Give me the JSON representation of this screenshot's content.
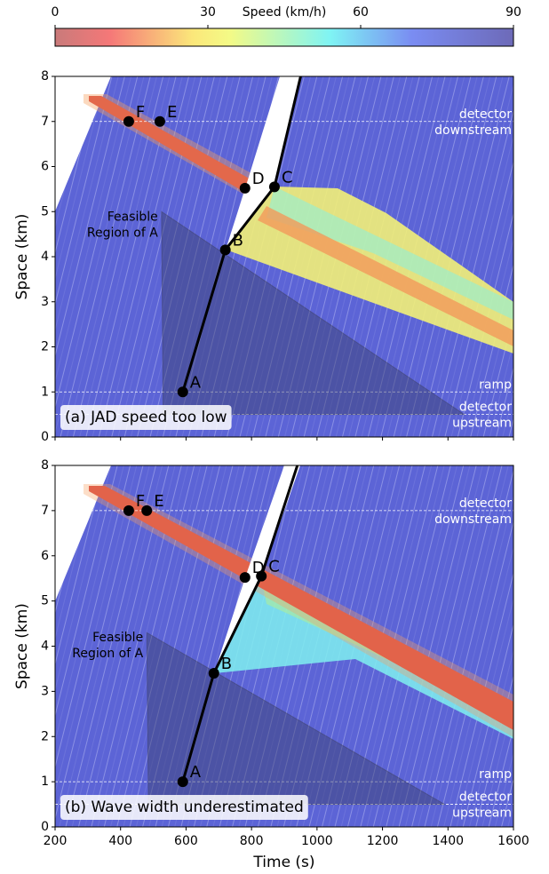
{
  "chart_data": [
    {
      "type": "heatmap",
      "colorbar": {
        "label": "Speed (km/h)",
        "lim": [
          0,
          90
        ],
        "ticks": [
          0,
          30,
          60,
          90
        ]
      },
      "panel_label": "(a) JAD speed too low",
      "ylabel": "Space (km)",
      "xlim": [
        200,
        1600
      ],
      "ylim": [
        0,
        8
      ],
      "xticks": [
        200,
        400,
        600,
        800,
        1000,
        1200,
        1400,
        1600
      ],
      "yticks": [
        0,
        1,
        2,
        3,
        4,
        5,
        6,
        7,
        8
      ],
      "reference_lines": [
        {
          "y": 7,
          "label": [
            "detector",
            "downstream"
          ]
        },
        {
          "y": 1,
          "label": [
            "ramp"
          ]
        },
        {
          "y": 0.5,
          "label": [
            "detector",
            "upstream"
          ]
        }
      ],
      "feasible_region": {
        "label": [
          "Feasible",
          "Region of A"
        ],
        "x": [
          525,
          530,
          1450
        ],
        "y": [
          5,
          0.5,
          0.5
        ]
      },
      "path": {
        "x": [
          590,
          720,
          870,
          950
        ],
        "y": [
          1,
          4.15,
          5.55,
          8
        ]
      },
      "points": {
        "labels": [
          "A",
          "B",
          "C",
          "D",
          "E",
          "F"
        ],
        "x": [
          590,
          720,
          870,
          780,
          520,
          425
        ],
        "y": [
          1,
          4.15,
          5.55,
          5.52,
          7,
          7
        ]
      }
    },
    {
      "type": "heatmap",
      "panel_label": "(b) Wave width underestimated",
      "ylabel": "Space (km)",
      "xlabel": "Time (s)",
      "xlim": [
        200,
        1600
      ],
      "ylim": [
        0,
        8
      ],
      "xticks": [
        200,
        400,
        600,
        800,
        1000,
        1200,
        1400,
        1600
      ],
      "yticks": [
        0,
        1,
        2,
        3,
        4,
        5,
        6,
        7,
        8
      ],
      "reference_lines": [
        {
          "y": 7,
          "label": [
            "detector",
            "downstream"
          ]
        },
        {
          "y": 1,
          "label": [
            "ramp"
          ]
        },
        {
          "y": 0.5,
          "label": [
            "detector",
            "upstream"
          ]
        }
      ],
      "feasible_region": {
        "label": [
          "Feasible",
          "Region of A"
        ],
        "x": [
          480,
          485,
          1390
        ],
        "y": [
          4.3,
          0.5,
          0.5
        ]
      },
      "path": {
        "x": [
          590,
          685,
          830,
          940
        ],
        "y": [
          1,
          3.4,
          5.55,
          8
        ]
      },
      "points": {
        "labels": [
          "A",
          "B",
          "C",
          "D",
          "E",
          "F"
        ],
        "x": [
          590,
          685,
          830,
          780,
          480,
          425
        ],
        "y": [
          1,
          3.4,
          5.55,
          5.52,
          7,
          7
        ]
      }
    }
  ]
}
